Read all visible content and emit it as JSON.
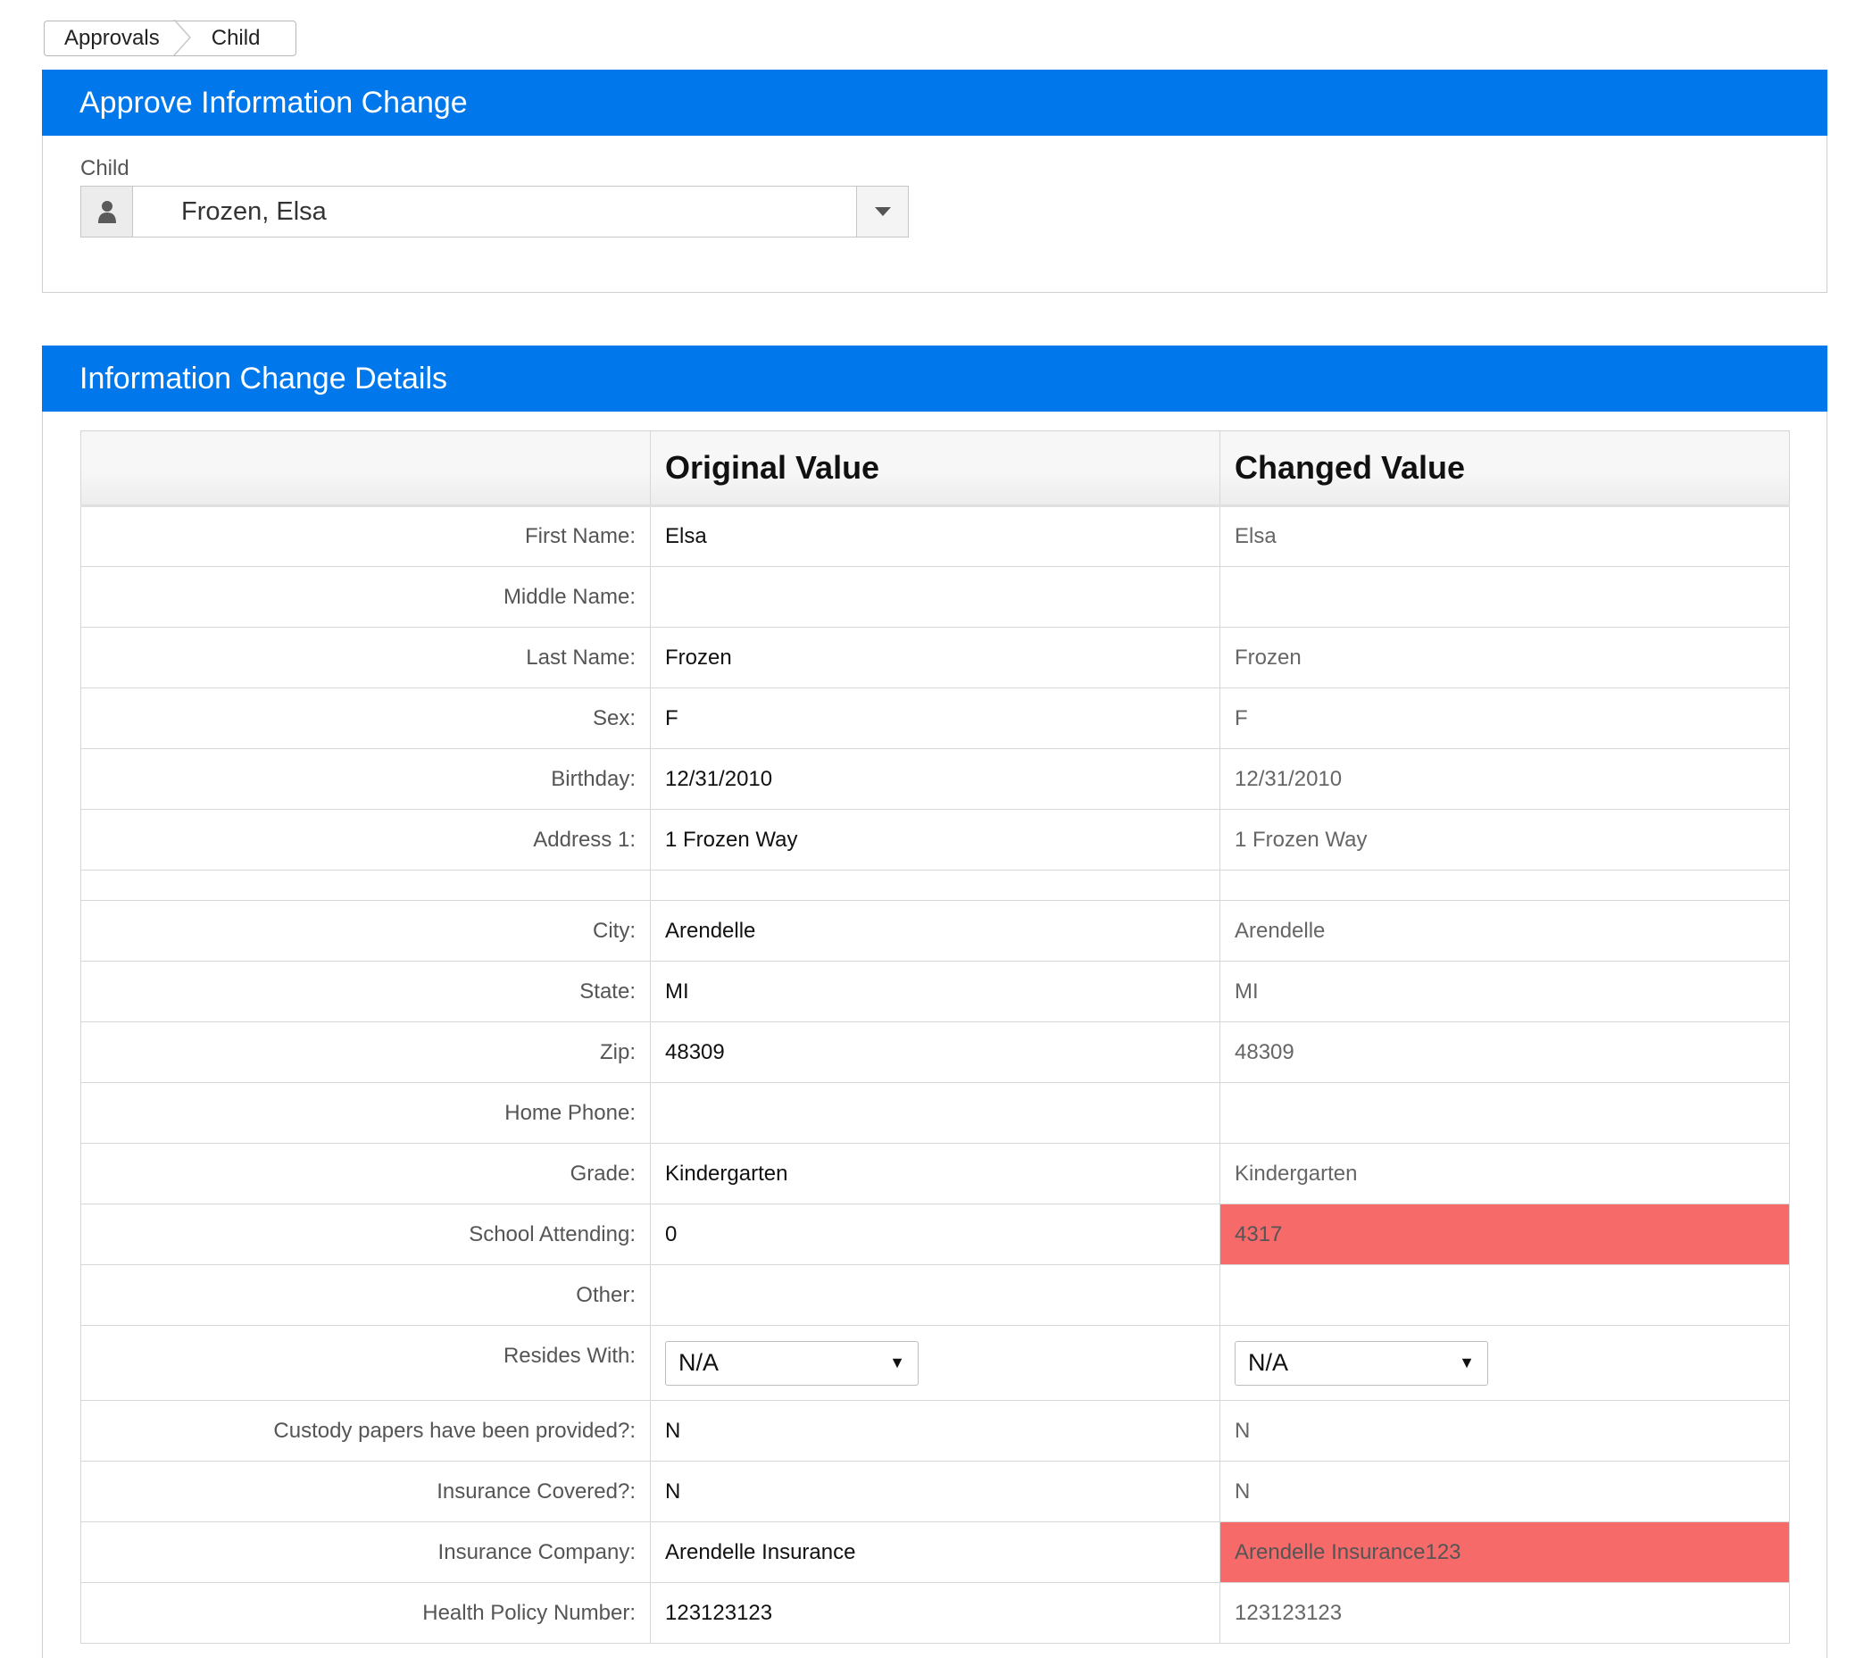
{
  "breadcrumb": {
    "items": [
      "Approvals",
      "Child"
    ]
  },
  "panel_approve": {
    "title": "Approve Information Change",
    "child_label": "Child",
    "child_value": "Frozen, Elsa",
    "user_icon": "user-icon",
    "caret_icon": "caret-down-icon"
  },
  "panel_details": {
    "title": "Information Change Details",
    "columns": [
      "",
      "Original Value",
      "Changed Value"
    ],
    "rows": [
      {
        "label": "First Name:",
        "original": "Elsa",
        "changed": "Elsa",
        "diff": false
      },
      {
        "label": "Middle Name:",
        "original": "",
        "changed": "",
        "diff": false
      },
      {
        "label": "Last Name:",
        "original": "Frozen",
        "changed": "Frozen",
        "diff": false
      },
      {
        "label": "Sex:",
        "original": "F",
        "changed": "F",
        "diff": false
      },
      {
        "label": "Birthday:",
        "original": "12/31/2010",
        "changed": "12/31/2010",
        "diff": false
      },
      {
        "label": "Address 1:",
        "original": "1 Frozen Way",
        "changed": "1 Frozen Way",
        "diff": false
      },
      {
        "label": "",
        "original": "",
        "changed": "",
        "diff": false
      },
      {
        "label": "City:",
        "original": "Arendelle",
        "changed": "Arendelle",
        "diff": false
      },
      {
        "label": "State:",
        "original": "MI",
        "changed": "MI",
        "diff": false
      },
      {
        "label": "Zip:",
        "original": "48309",
        "changed": "48309",
        "diff": false
      },
      {
        "label": "Home Phone:",
        "original": "",
        "changed": "",
        "diff": false
      },
      {
        "label": "Grade:",
        "original": "Kindergarten",
        "changed": "Kindergarten",
        "diff": false
      },
      {
        "label": "School Attending:",
        "original": "0",
        "changed": "4317",
        "diff": true
      },
      {
        "label": "Other:",
        "original": "",
        "changed": "",
        "diff": false
      },
      {
        "label": "Resides With:",
        "original": "N/A",
        "changed": "N/A",
        "diff": false
      },
      {
        "label": "Custody papers have been provided?:",
        "original": "N",
        "changed": "N",
        "diff": false
      },
      {
        "label": "Insurance Covered?:",
        "original": "N",
        "changed": "N",
        "diff": false
      },
      {
        "label": "Insurance Company:",
        "original": "Arendelle Insurance",
        "changed": "Arendelle Insurance123",
        "diff": true
      },
      {
        "label": "Health Policy Number:",
        "original": "123123123",
        "changed": "123123123",
        "diff": false
      }
    ]
  },
  "colors": {
    "header_blue": "#0077ea",
    "diff_red": "#f76a6a"
  }
}
